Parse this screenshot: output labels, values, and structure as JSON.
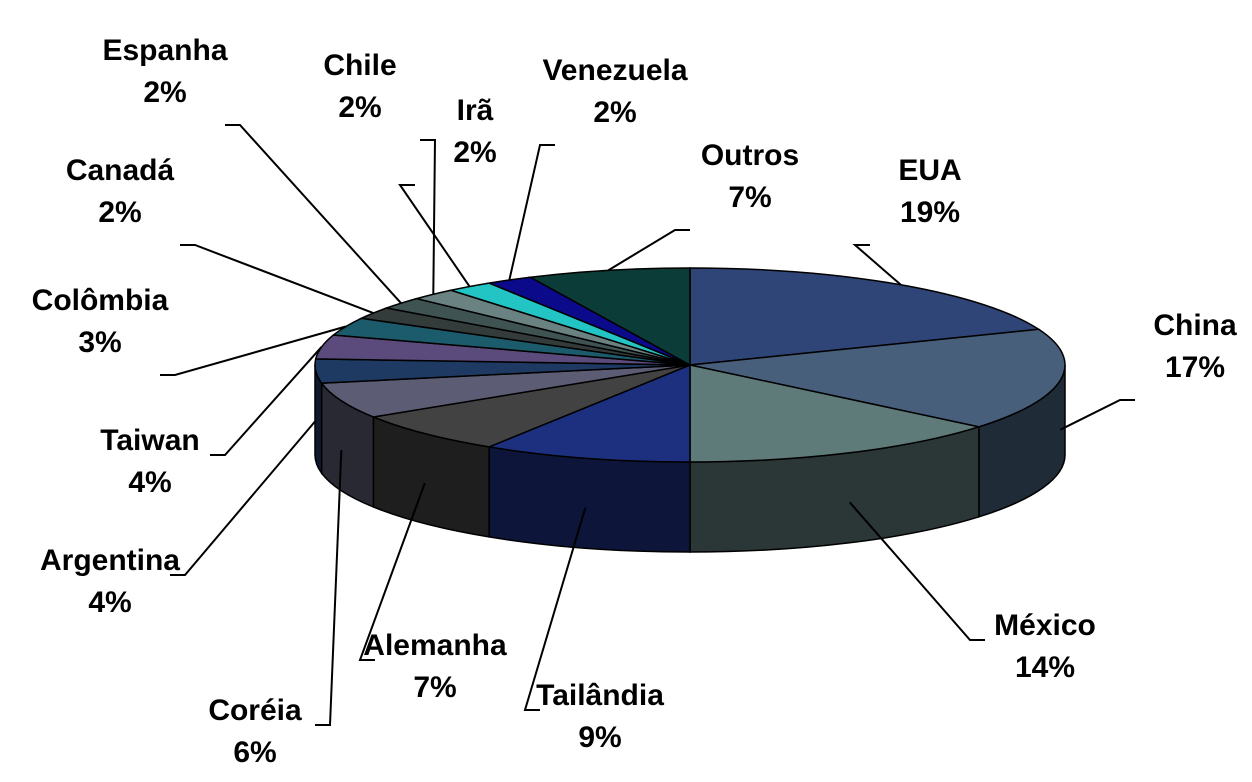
{
  "chart_data": {
    "type": "pie3d",
    "categories": [
      "EUA",
      "China",
      "México",
      "Tailândia",
      "Alemanha",
      "Coréia",
      "Argentina",
      "Taiwan",
      "Colômbia",
      "Canadá",
      "Espanha",
      "Chile",
      "Irã",
      "Venezuela",
      "Outros"
    ],
    "values": [
      19,
      17,
      14,
      9,
      7,
      6,
      4,
      4,
      3,
      2,
      2,
      2,
      2,
      2,
      7
    ],
    "value_labels": [
      "19%",
      "17%",
      "14%",
      "9%",
      "7%",
      "6%",
      "4%",
      "4%",
      "3%",
      "2%",
      "2%",
      "2%",
      "2%",
      "2%",
      "7%"
    ],
    "colors": [
      "#2f4477",
      "#485f7c",
      "#5f7b79",
      "#1d3080",
      "#424242",
      "#5c5c74",
      "#1e3a62",
      "#5b4a7c",
      "#1b5b6b",
      "#333b3b",
      "#3f5353",
      "#6b8282",
      "#22c4c4",
      "#0a0a8a",
      "#0c3c38"
    ]
  }
}
